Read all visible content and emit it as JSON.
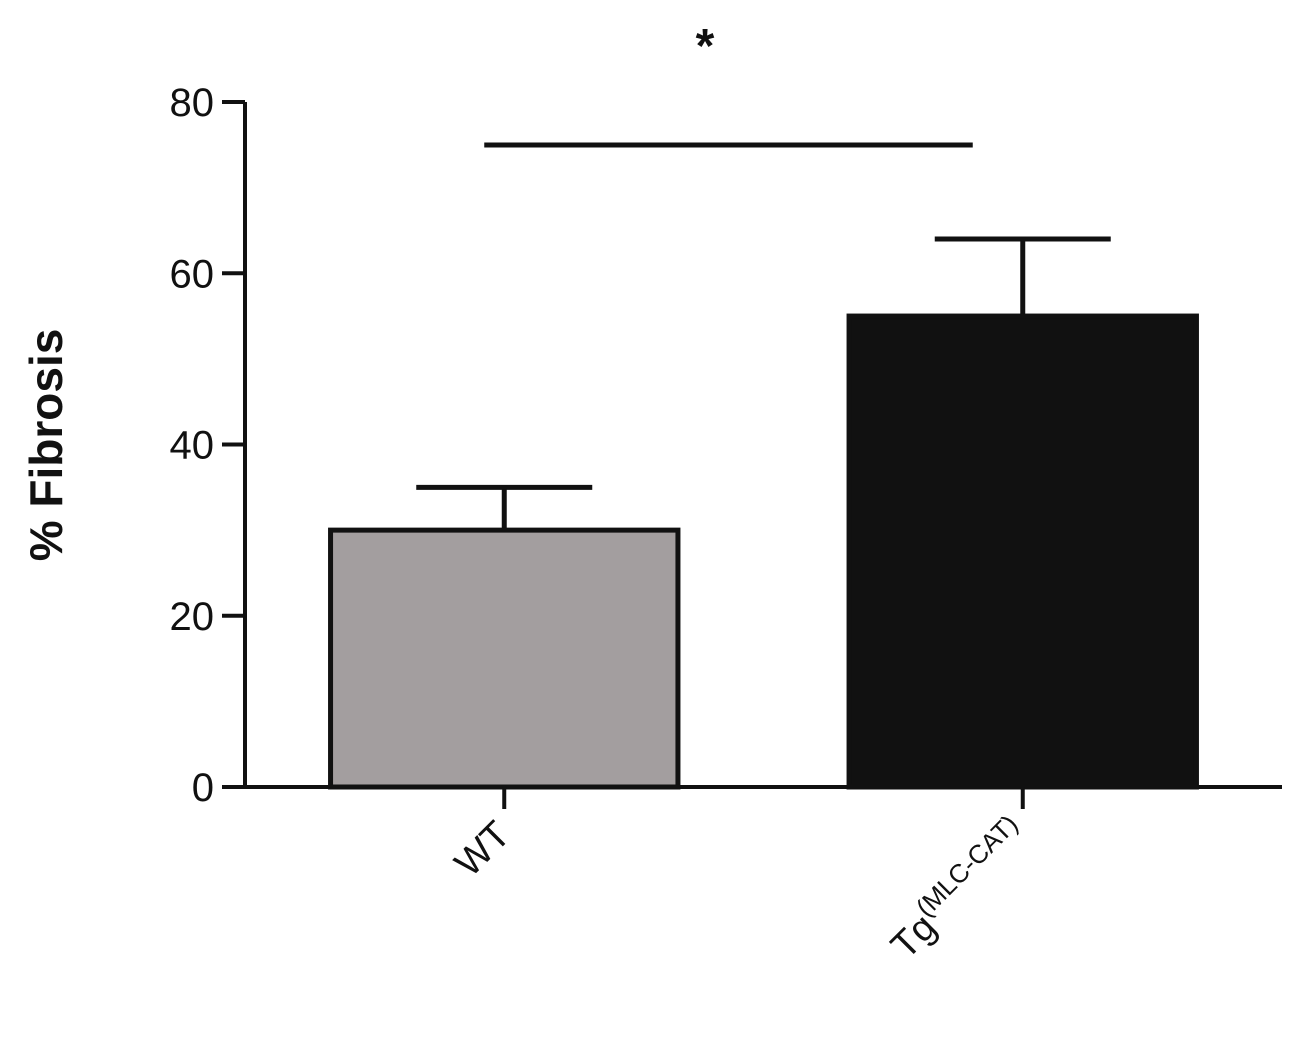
{
  "chart_data": {
    "type": "bar",
    "y_label": "% Fibrosis",
    "significance": "*",
    "categories": [
      "WT",
      "Tg"
    ],
    "category_superscripts": [
      null,
      "(MLC-CAT)"
    ],
    "values": [
      30,
      55
    ],
    "errors": [
      5,
      9
    ],
    "colors": [
      "#a39e9f",
      "#111111"
    ],
    "ylim": [
      0,
      80
    ],
    "yticks": [
      0,
      20,
      40,
      60,
      80
    ]
  }
}
